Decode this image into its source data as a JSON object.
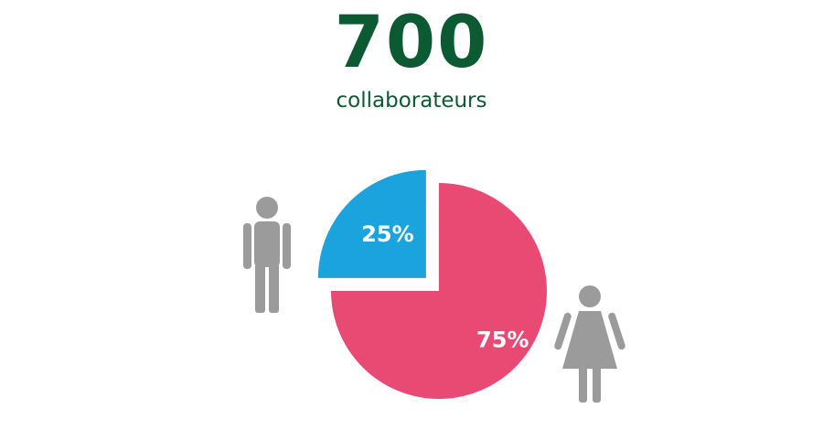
{
  "headline": {
    "value": "700",
    "label": "collaborateurs",
    "color": "#0b5a32"
  },
  "chart_data": {
    "type": "pie",
    "slices": [
      {
        "label": "25%",
        "value": 25,
        "color": "#1aa3dc",
        "icon": "man-icon"
      },
      {
        "label": "75%",
        "value": 75,
        "color": "#e84a73",
        "icon": "woman-icon"
      }
    ],
    "label_color": "#ffffff",
    "icon_color": "#9b9b9b"
  }
}
